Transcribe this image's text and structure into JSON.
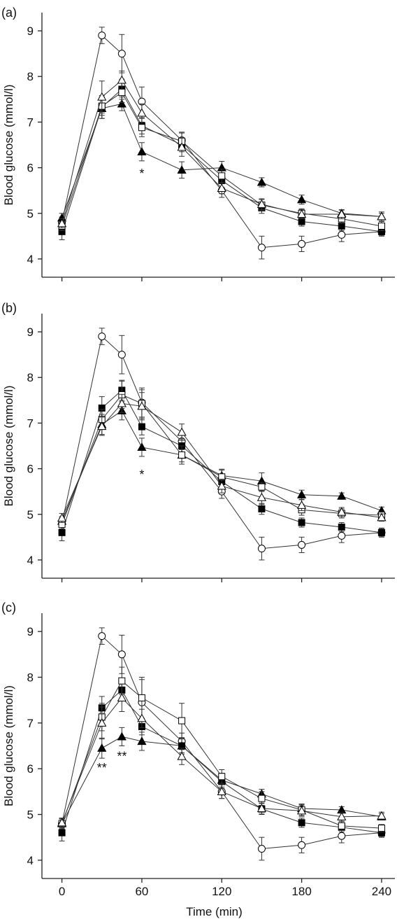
{
  "chart_data": [
    {
      "type": "line",
      "panel_label": "(a)",
      "ylabel": "Blood glucose (mmol/l)",
      "xlabel": "",
      "ylim": [
        3.6,
        9.4
      ],
      "xlim": [
        -15,
        250
      ],
      "x_ticks": [
        0,
        60,
        120,
        180,
        240
      ],
      "y_ticks": [
        4,
        5,
        6,
        7,
        8,
        9
      ],
      "show_x_tick_labels": false,
      "grid": false,
      "annotations": [
        {
          "text": "*",
          "x": 60,
          "y": 5.9
        }
      ],
      "series": [
        {
          "marker": "open-circle",
          "x": [
            0,
            30,
            45,
            60,
            90,
            120,
            150,
            180,
            210,
            240
          ],
          "y": [
            4.8,
            8.9,
            8.5,
            7.45,
            6.6,
            5.5,
            4.25,
            4.33,
            4.53,
            4.6
          ],
          "err": [
            0.12,
            0.18,
            0.42,
            0.32,
            0.18,
            0.15,
            0.25,
            0.17,
            0.15,
            0.1
          ]
        },
        {
          "marker": "filled-triangle",
          "x": [
            0,
            30,
            45,
            60,
            90,
            120,
            150,
            180,
            210,
            240
          ],
          "y": [
            4.9,
            7.3,
            7.4,
            6.35,
            5.95,
            6.0,
            5.68,
            5.3,
            5.0,
            4.93
          ],
          "err": [
            0.1,
            0.22,
            0.15,
            0.2,
            0.18,
            0.14,
            0.1,
            0.1,
            0.07,
            0.07
          ]
        },
        {
          "marker": "filled-square",
          "x": [
            0,
            30,
            45,
            60,
            90,
            120,
            150,
            180,
            210,
            240
          ],
          "y": [
            4.6,
            7.33,
            7.72,
            6.92,
            6.5,
            5.72,
            5.12,
            4.82,
            4.72,
            4.6
          ],
          "err": [
            0.18,
            0.25,
            0.22,
            0.18,
            0.15,
            0.15,
            0.12,
            0.1,
            0.1,
            0.08
          ]
        },
        {
          "marker": "open-square",
          "x": [
            0,
            30,
            45,
            60,
            90,
            120,
            150,
            180,
            210,
            240
          ],
          "y": [
            4.72,
            7.35,
            7.65,
            6.88,
            6.58,
            5.82,
            5.18,
            5.0,
            4.88,
            4.72
          ],
          "err": [
            0.1,
            0.2,
            0.22,
            0.2,
            0.18,
            0.15,
            0.12,
            0.1,
            0.1,
            0.1
          ]
        },
        {
          "marker": "open-triangle",
          "x": [
            0,
            30,
            45,
            60,
            90,
            120,
            150,
            180,
            210,
            240
          ],
          "y": [
            4.78,
            7.55,
            7.92,
            7.2,
            6.45,
            5.55,
            5.2,
            4.98,
            4.98,
            4.93
          ],
          "err": [
            0.1,
            0.35,
            0.2,
            0.2,
            0.2,
            0.12,
            0.12,
            0.1,
            0.1,
            0.1
          ]
        }
      ]
    },
    {
      "type": "line",
      "panel_label": "(b)",
      "ylabel": "Blood glucose (mmol/l)",
      "xlabel": "",
      "ylim": [
        3.6,
        9.4
      ],
      "xlim": [
        -15,
        250
      ],
      "x_ticks": [
        0,
        60,
        120,
        180,
        240
      ],
      "y_ticks": [
        4,
        5,
        6,
        7,
        8,
        9
      ],
      "show_x_tick_labels": false,
      "grid": false,
      "annotations": [
        {
          "text": "*",
          "x": 60,
          "y": 5.9
        }
      ],
      "series": [
        {
          "marker": "open-circle",
          "x": [
            0,
            30,
            45,
            60,
            90,
            120,
            150,
            180,
            210,
            240
          ],
          "y": [
            4.8,
            8.9,
            8.5,
            7.45,
            6.6,
            5.5,
            4.25,
            4.33,
            4.53,
            4.6
          ],
          "err": [
            0.12,
            0.18,
            0.42,
            0.32,
            0.18,
            0.15,
            0.25,
            0.17,
            0.15,
            0.1
          ]
        },
        {
          "marker": "filled-triangle",
          "x": [
            0,
            30,
            45,
            60,
            90,
            120,
            150,
            180,
            210,
            240
          ],
          "y": [
            4.85,
            6.97,
            7.27,
            6.47,
            6.3,
            5.85,
            5.73,
            5.43,
            5.4,
            5.08
          ],
          "err": [
            0.1,
            0.22,
            0.2,
            0.2,
            0.15,
            0.14,
            0.18,
            0.1,
            0.07,
            0.08
          ]
        },
        {
          "marker": "filled-square",
          "x": [
            0,
            30,
            45,
            60,
            90,
            120,
            150,
            180,
            210,
            240
          ],
          "y": [
            4.6,
            7.33,
            7.72,
            6.92,
            6.5,
            5.72,
            5.12,
            4.82,
            4.72,
            4.6
          ],
          "err": [
            0.18,
            0.25,
            0.22,
            0.18,
            0.15,
            0.15,
            0.12,
            0.1,
            0.1,
            0.08
          ]
        },
        {
          "marker": "open-square",
          "x": [
            0,
            30,
            45,
            60,
            90,
            120,
            150,
            180,
            210,
            240
          ],
          "y": [
            4.78,
            7.08,
            7.62,
            7.43,
            6.3,
            5.82,
            5.6,
            5.1,
            5.02,
            4.98
          ],
          "err": [
            0.1,
            0.22,
            0.3,
            0.3,
            0.2,
            0.15,
            0.1,
            0.12,
            0.1,
            0.08
          ]
        },
        {
          "marker": "open-triangle",
          "x": [
            0,
            30,
            45,
            60,
            90,
            120,
            150,
            180,
            210,
            240
          ],
          "y": [
            4.92,
            6.93,
            7.43,
            7.37,
            6.8,
            5.62,
            5.37,
            5.2,
            5.05,
            4.93
          ],
          "err": [
            0.1,
            0.2,
            0.2,
            0.3,
            0.18,
            0.15,
            0.15,
            0.12,
            0.1,
            0.08
          ]
        }
      ]
    },
    {
      "type": "line",
      "panel_label": "(c)",
      "ylabel": "Blood glucose (mmol/l)",
      "xlabel": "Time (min)",
      "ylim": [
        3.6,
        9.4
      ],
      "xlim": [
        -15,
        250
      ],
      "x_ticks": [
        0,
        60,
        120,
        180,
        240
      ],
      "y_ticks": [
        4,
        5,
        6,
        7,
        8,
        9
      ],
      "show_x_tick_labels": true,
      "grid": false,
      "annotations": [
        {
          "text": "**",
          "x": 30,
          "y": 6.05
        },
        {
          "text": "**",
          "x": 45,
          "y": 6.3
        }
      ],
      "series": [
        {
          "marker": "open-circle",
          "x": [
            0,
            30,
            45,
            60,
            90,
            120,
            150,
            180,
            210,
            240
          ],
          "y": [
            4.8,
            8.9,
            8.5,
            7.45,
            6.6,
            5.5,
            4.25,
            4.33,
            4.53,
            4.6
          ],
          "err": [
            0.12,
            0.18,
            0.42,
            0.5,
            0.18,
            0.15,
            0.25,
            0.17,
            0.15,
            0.1
          ]
        },
        {
          "marker": "filled-triangle",
          "x": [
            0,
            30,
            45,
            60,
            90,
            120,
            150,
            180,
            210,
            240
          ],
          "y": [
            4.8,
            6.45,
            6.7,
            6.6,
            6.5,
            5.75,
            5.45,
            5.13,
            5.1,
            4.95
          ],
          "err": [
            0.1,
            0.22,
            0.2,
            0.2,
            0.18,
            0.15,
            0.1,
            0.1,
            0.07,
            0.07
          ]
        },
        {
          "marker": "filled-square",
          "x": [
            0,
            30,
            45,
            60,
            90,
            120,
            150,
            180,
            210,
            240
          ],
          "y": [
            4.6,
            7.33,
            7.72,
            6.92,
            6.5,
            5.72,
            5.12,
            4.82,
            4.72,
            4.6
          ],
          "err": [
            0.18,
            0.25,
            0.22,
            0.18,
            0.15,
            0.15,
            0.12,
            0.1,
            0.1,
            0.08
          ]
        },
        {
          "marker": "open-square",
          "x": [
            0,
            30,
            45,
            60,
            90,
            120,
            150,
            180,
            210,
            240
          ],
          "y": [
            4.8,
            7.13,
            7.92,
            7.55,
            7.05,
            5.83,
            5.35,
            5.1,
            4.75,
            4.7
          ],
          "err": [
            0.1,
            0.3,
            0.3,
            0.45,
            0.38,
            0.15,
            0.15,
            0.12,
            0.1,
            0.08
          ]
        },
        {
          "marker": "open-triangle",
          "x": [
            0,
            30,
            45,
            60,
            90,
            120,
            150,
            180,
            210,
            240
          ],
          "y": [
            4.82,
            7.0,
            7.55,
            7.1,
            6.27,
            5.5,
            5.13,
            5.08,
            4.95,
            4.97
          ],
          "err": [
            0.1,
            0.35,
            0.3,
            0.2,
            0.18,
            0.15,
            0.12,
            0.12,
            0.1,
            0.08
          ]
        }
      ]
    }
  ]
}
